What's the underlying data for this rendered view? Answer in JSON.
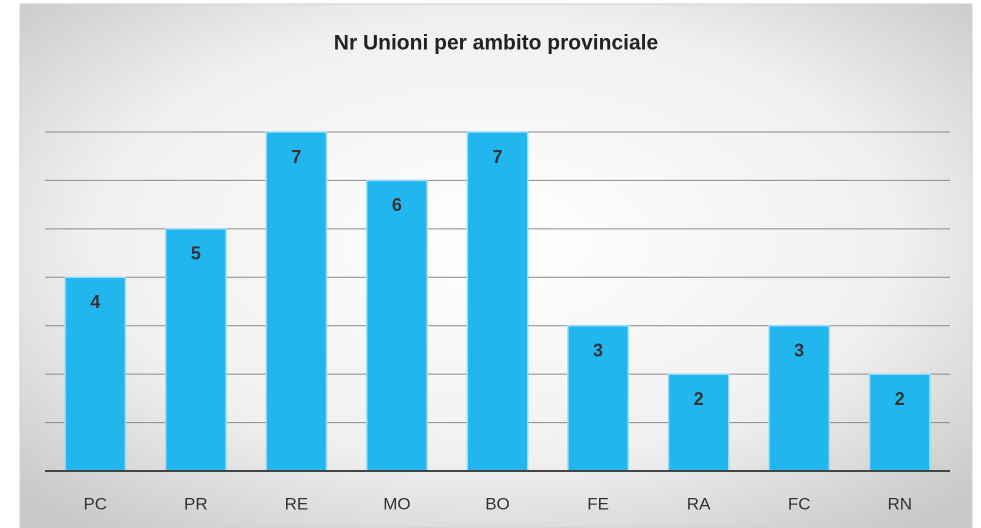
{
  "chart_data": {
    "type": "bar",
    "title": "Nr Unioni per ambito provinciale",
    "categories": [
      "PC",
      "PR",
      "RE",
      "MO",
      "BO",
      "FE",
      "RA",
      "FC",
      "RN"
    ],
    "values": [
      4,
      5,
      7,
      6,
      7,
      3,
      2,
      3,
      2
    ],
    "color": "#22b6ee",
    "ylim": [
      0,
      7
    ],
    "yticks": [
      0,
      1,
      2,
      3,
      4,
      5,
      6,
      7
    ],
    "grid": true
  }
}
